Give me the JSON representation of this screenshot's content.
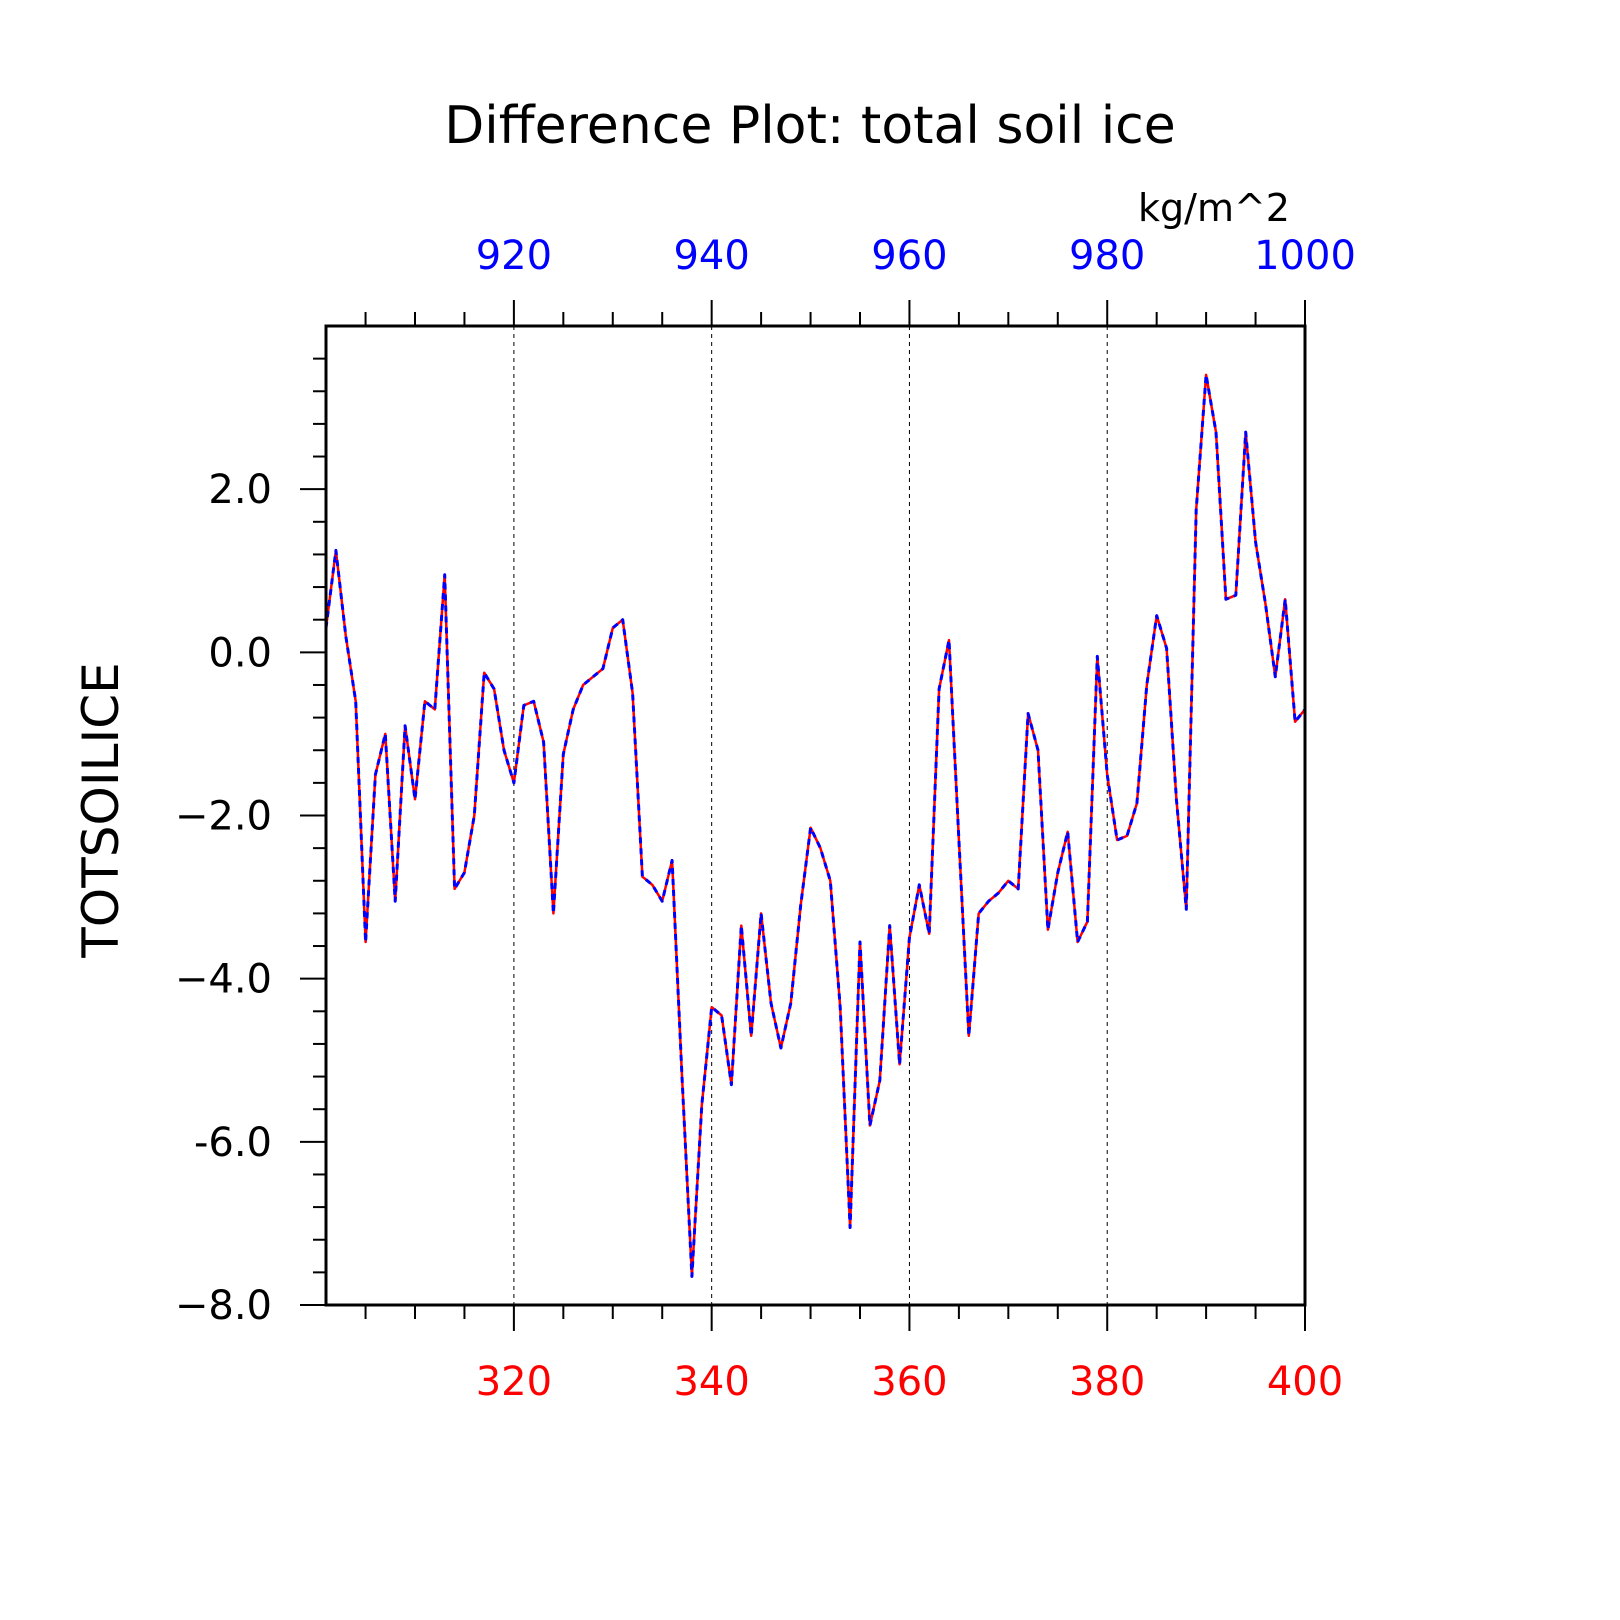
{
  "chart_data": {
    "type": "line",
    "title": "Difference Plot: total soil ice",
    "units": "kg/m^2",
    "ylabel": "TOTSOILICE",
    "ylim": [
      -8.0,
      4.0
    ],
    "yticks": [
      2.0,
      0.0,
      -2.0,
      -4.0,
      -6.0,
      -8.0
    ],
    "ytick_labels": [
      "2.0",
      "0.0",
      "−2.0",
      "−4.0",
      "-6.0",
      "−8.0"
    ],
    "bottom_axis": {
      "range": [
        301,
        400
      ],
      "ticks": [
        320,
        340,
        360,
        380,
        400
      ],
      "tick_labels": [
        "320",
        "340",
        "360",
        "380",
        "400"
      ],
      "color": "#ff0000"
    },
    "top_axis": {
      "range": [
        901,
        1000
      ],
      "ticks": [
        920,
        940,
        960,
        980,
        1000
      ],
      "tick_labels": [
        "920",
        "940",
        "960",
        "980",
        "1000"
      ],
      "color": "#0000ff"
    },
    "grid": "vertical dashed at major x ticks",
    "x": [
      301,
      302,
      303,
      304,
      305,
      306,
      307,
      308,
      309,
      310,
      311,
      312,
      313,
      314,
      315,
      316,
      317,
      318,
      319,
      320,
      321,
      322,
      323,
      324,
      325,
      326,
      327,
      328,
      329,
      330,
      331,
      332,
      333,
      334,
      335,
      336,
      337,
      338,
      339,
      340,
      341,
      342,
      343,
      344,
      345,
      346,
      347,
      348,
      349,
      350,
      351,
      352,
      353,
      354,
      355,
      356,
      357,
      358,
      359,
      360,
      361,
      362,
      363,
      364,
      365,
      366,
      367,
      368,
      369,
      370,
      371,
      372,
      373,
      374,
      375,
      376,
      377,
      378,
      379,
      380,
      381,
      382,
      383,
      384,
      385,
      386,
      387,
      388,
      389,
      390,
      391,
      392,
      393,
      394,
      395,
      396,
      397,
      398,
      399,
      400
    ],
    "series": [
      {
        "color": "#ff0000",
        "style": "solid",
        "values": [
          0.3,
          1.25,
          0.2,
          -0.6,
          -3.55,
          -1.5,
          -1.0,
          -3.05,
          -0.9,
          -1.8,
          -0.6,
          -0.7,
          0.95,
          -2.9,
          -2.7,
          -2.0,
          -0.25,
          -0.45,
          -1.2,
          -1.6,
          -0.65,
          -0.6,
          -1.1,
          -3.2,
          -1.25,
          -0.7,
          -0.4,
          -0.3,
          -0.2,
          0.3,
          0.4,
          -0.5,
          -2.75,
          -2.85,
          -3.05,
          -2.55,
          -5.2,
          -7.65,
          -5.55,
          -4.35,
          -4.45,
          -5.3,
          -3.35,
          -4.7,
          -3.2,
          -4.3,
          -4.85,
          -4.3,
          -3.1,
          -2.15,
          -2.4,
          -2.8,
          -4.35,
          -7.05,
          -3.55,
          -5.8,
          -5.25,
          -3.35,
          -5.05,
          -3.5,
          -2.85,
          -3.45,
          -0.45,
          0.15,
          -2.3,
          -4.7,
          -3.2,
          -3.05,
          -2.95,
          -2.8,
          -2.9,
          -0.75,
          -1.2,
          -3.4,
          -2.7,
          -2.2,
          -3.55,
          -3.3,
          -0.05,
          -1.5,
          -2.3,
          -2.25,
          -1.85,
          -0.4,
          0.45,
          0.05,
          -1.8,
          -3.15,
          1.75,
          3.4,
          2.7,
          0.65,
          0.7,
          2.7,
          1.35,
          0.6,
          -0.3,
          0.65,
          -0.85,
          -0.7
        ]
      },
      {
        "color": "#0000ff",
        "style": "dashed",
        "values": [
          0.3,
          1.25,
          0.2,
          -0.6,
          -3.55,
          -1.5,
          -1.0,
          -3.05,
          -0.9,
          -1.8,
          -0.6,
          -0.7,
          0.95,
          -2.9,
          -2.7,
          -2.0,
          -0.25,
          -0.45,
          -1.2,
          -1.6,
          -0.65,
          -0.6,
          -1.1,
          -3.2,
          -1.25,
          -0.7,
          -0.4,
          -0.3,
          -0.2,
          0.3,
          0.4,
          -0.5,
          -2.75,
          -2.85,
          -3.05,
          -2.55,
          -5.2,
          -7.65,
          -5.55,
          -4.35,
          -4.45,
          -5.3,
          -3.35,
          -4.7,
          -3.2,
          -4.3,
          -4.85,
          -4.3,
          -3.1,
          -2.15,
          -2.4,
          -2.8,
          -4.35,
          -7.05,
          -3.55,
          -5.8,
          -5.25,
          -3.35,
          -5.05,
          -3.5,
          -2.85,
          -3.45,
          -0.45,
          0.15,
          -2.3,
          -4.7,
          -3.2,
          -3.05,
          -2.95,
          -2.8,
          -2.9,
          -0.75,
          -1.2,
          -3.4,
          -2.7,
          -2.2,
          -3.55,
          -3.3,
          -0.05,
          -1.5,
          -2.3,
          -2.25,
          -1.85,
          -0.4,
          0.45,
          0.05,
          -1.8,
          -3.15,
          1.75,
          3.4,
          2.7,
          0.65,
          0.7,
          2.7,
          1.35,
          0.6,
          -0.3,
          0.65,
          -0.85,
          -0.7
        ]
      }
    ]
  }
}
